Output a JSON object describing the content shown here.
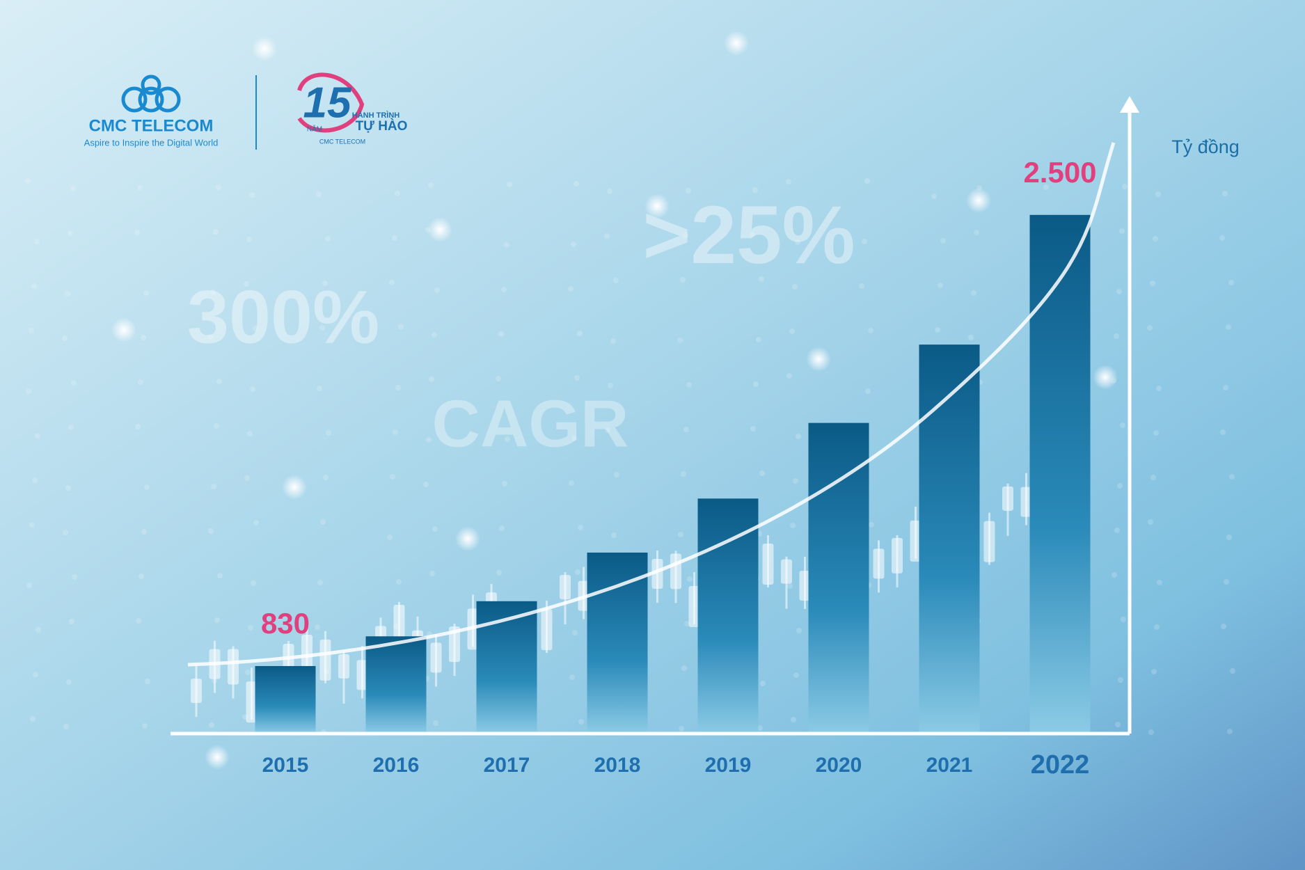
{
  "brand": {
    "name": "CMC TELECOM",
    "tagline": "Aspire to Inspire the Digital World",
    "badge_number": "15",
    "badge_years": "NĂM",
    "badge_line1": "HÀNH TRÌNH",
    "badge_line2": "TỰ HÀO",
    "badge_company": "CMC TELECOM"
  },
  "chart_data": {
    "type": "bar",
    "unit_label": "Tỷ đồng",
    "annotations": [
      "300%",
      ">25%",
      "CAGR"
    ],
    "categories": [
      "2015",
      "2016",
      "2017",
      "2018",
      "2019",
      "2020",
      "2021",
      "2022"
    ],
    "values": [
      830,
      940,
      1070,
      1250,
      1450,
      1730,
      2020,
      2500
    ],
    "value_labels": [
      "830",
      null,
      null,
      null,
      null,
      null,
      null,
      "2.500"
    ],
    "ylim": [
      580,
      2940
    ],
    "color": "#0b5a86",
    "label_color": "#e0417e"
  }
}
